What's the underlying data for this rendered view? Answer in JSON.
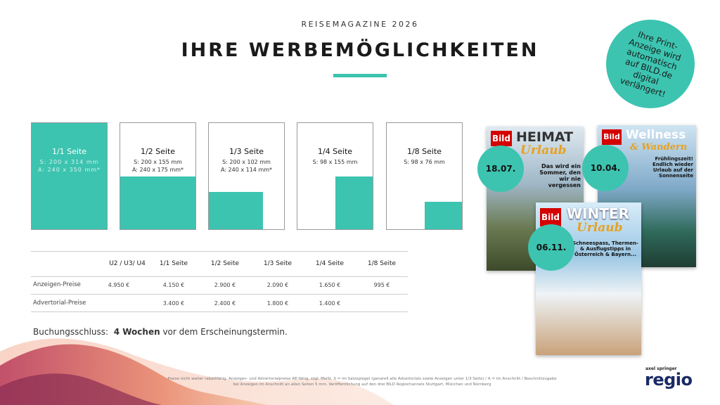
{
  "header": {
    "kicker": "REISEMAGAZINE 2026",
    "title": "IHRE WERBEMÖGLICHKEITEN"
  },
  "badge": "Ihre Print-Anzeige wird automatisch auf BILD.de digital verlängert!",
  "formats": [
    {
      "name": "1/1 Seite",
      "dims": [
        "S: 200 x 314 mm",
        "A: 240 x 350 mm*"
      ]
    },
    {
      "name": "1/2 Seite",
      "dims": [
        "S: 200 x 155 mm",
        "A: 240 x 175 mm*"
      ]
    },
    {
      "name": "1/3 Seite",
      "dims": [
        "S: 200 x 102 mm",
        "A: 240 x 114 mm*"
      ]
    },
    {
      "name": "1/4 Seite",
      "dims": [
        "S: 98 x 155 mm"
      ]
    },
    {
      "name": "1/8 Seite",
      "dims": [
        "S: 98 x 76 mm"
      ]
    }
  ],
  "table": {
    "header": [
      null,
      "U2 / U3/ U4",
      "1/1 Seite",
      "1/2 Seite",
      "1/3 Seite",
      "1/4 Seite",
      "1/8 Seite"
    ],
    "rows": [
      [
        "Anzeigen-Preise",
        "4.950 €",
        "4.150 €",
        "2.900 €",
        "2.090 €",
        "1.650 €",
        "995 €"
      ],
      [
        "Advertorial-Preise",
        null,
        "3.400 €",
        "2.400 €",
        "1.800 €",
        "1.400 €",
        null
      ]
    ]
  },
  "booking": {
    "label": "Buchungsschluss:",
    "emphasis": "4 Wochen",
    "rest": "vor dem Erscheinungstermin."
  },
  "footnote": [
    "Preise nicht weiter rabattfähig. Anzeigen- und Advertorialpreise AE-fähig, zzgl. MwSt. S = im Satzspiegel (generell alle Advertorials sowie Anzeigen unter 1/3 Seite) / A = im Anschnitt / Beschnittzugabe",
    "bei Anzeigen im Anschnitt an allen Seiten 5 mm. Veröffentlichung auf den drei BILD Regiochannels Stuttgart, München und Nürnberg"
  ],
  "magazines": [
    {
      "brand": "Bild",
      "title": "HEIMAT",
      "subtitle": "Urlaub",
      "headline": "Das wird ein Sommer, den wir nie vergessen",
      "date": "18.07."
    },
    {
      "brand": "Bild",
      "title": "Wellness",
      "subtitle": "& Wandern",
      "headline": "Frühlingszeit! Endlich wieder Urlaub auf der Sonnenseite",
      "date": "10.04."
    },
    {
      "brand": "Bild",
      "title": "WINTER",
      "subtitle": "Urlaub",
      "headline": "Schneespass, Thermen- & Ausflugstipps in Österreich & Bayern...",
      "date": "06.11."
    }
  ],
  "logo": {
    "small": "axel springer",
    "big": "regio"
  }
}
